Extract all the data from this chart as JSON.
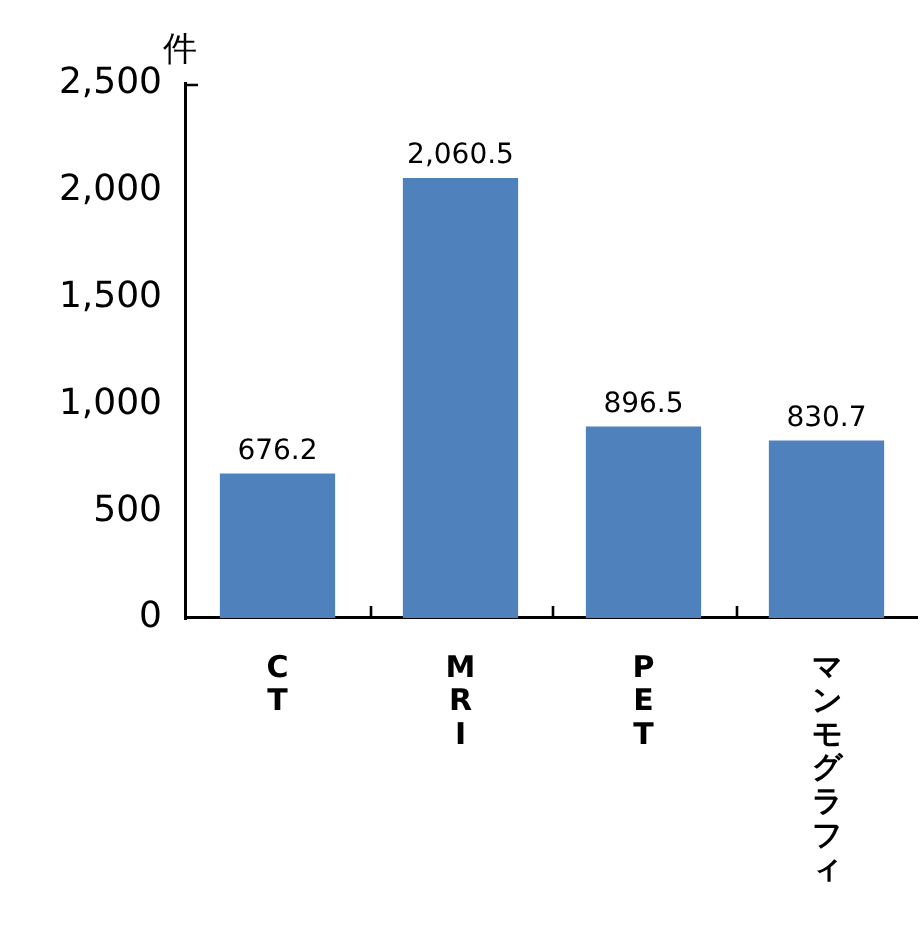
{
  "chart_data": {
    "type": "bar",
    "ylabel": "件",
    "categories": [
      "CT",
      "MRI",
      "PET",
      "マンモグラフィ"
    ],
    "values": [
      676.2,
      2060.5,
      896.5,
      830.7
    ],
    "color": "#4f81bd",
    "value_labels": [
      "676.2",
      "2,060.5",
      "896.5",
      "830.7"
    ],
    "ylim": [
      0,
      2500
    ],
    "yticks": [
      0,
      500,
      {
        "value": 1000,
        "label": "1,000"
      },
      {
        "value": 1500,
        "label": "1,500"
      },
      {
        "value": 2000,
        "label": "2,000"
      },
      {
        "value": 2500,
        "label": "2,500"
      }
    ],
    "grid": false,
    "legend": false
  }
}
